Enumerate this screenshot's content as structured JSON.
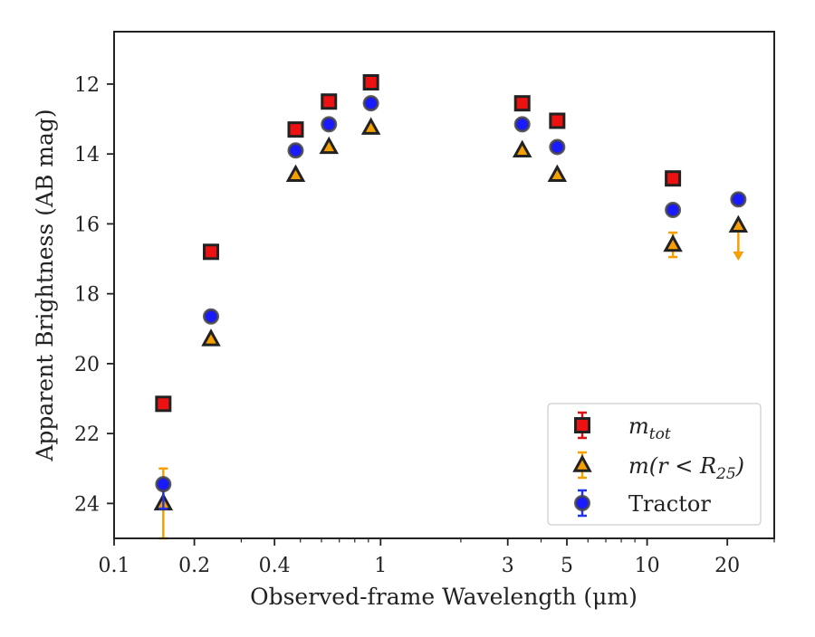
{
  "chart_data": {
    "type": "scatter",
    "xlabel": "Observed-frame Wavelength (μm)",
    "ylabel": "Apparent Brightness (AB mag)",
    "xscale": "log",
    "xlim": [
      0.1,
      30
    ],
    "ylim": [
      25,
      10.5
    ],
    "y_inverted": true,
    "x_ticks": [
      {
        "value": 0.1,
        "label": "0.1"
      },
      {
        "value": 0.2,
        "label": "0.2"
      },
      {
        "value": 0.4,
        "label": "0.4"
      },
      {
        "value": 1,
        "label": "1"
      },
      {
        "value": 3,
        "label": "3"
      },
      {
        "value": 5,
        "label": "5"
      },
      {
        "value": 10,
        "label": "10"
      },
      {
        "value": 20,
        "label": "20"
      }
    ],
    "y_ticks": [
      {
        "value": 12,
        "label": "12"
      },
      {
        "value": 14,
        "label": "14"
      },
      {
        "value": 16,
        "label": "16"
      },
      {
        "value": 18,
        "label": "18"
      },
      {
        "value": 20,
        "label": "20"
      },
      {
        "value": 22,
        "label": "22"
      },
      {
        "value": 24,
        "label": "24"
      }
    ],
    "grid": false,
    "legend_position": "lower-right",
    "series": [
      {
        "name": "m_tot",
        "legend_main": "m",
        "legend_sub": "tot",
        "marker": "square",
        "color": "#ee1111",
        "edgecolor": "#222222",
        "errcolor": "#dd1111",
        "points": [
          {
            "x": 0.153,
            "y": 21.15,
            "err": 0.1
          },
          {
            "x": 0.231,
            "y": 16.8,
            "err": 0.05
          },
          {
            "x": 0.48,
            "y": 13.3,
            "err": 0.03
          },
          {
            "x": 0.64,
            "y": 12.5,
            "err": 0.03
          },
          {
            "x": 0.92,
            "y": 11.95,
            "err": 0.03
          },
          {
            "x": 3.4,
            "y": 12.55,
            "err": 0.03
          },
          {
            "x": 4.6,
            "y": 13.05,
            "err": 0.03
          },
          {
            "x": 12.5,
            "y": 14.7,
            "err": 0.05
          },
          {
            "x": 22.0,
            "y": null
          }
        ]
      },
      {
        "name": "m(r < R25)",
        "legend_main": "m(r < R",
        "legend_sub": "25",
        "legend_tail": ")",
        "marker": "triangle",
        "color": "#f5a000",
        "edgecolor": "#222222",
        "errcolor": "#f5a000",
        "points": [
          {
            "x": 0.153,
            "y": 24.0,
            "err_low": 1.5,
            "err_high": 1.0
          },
          {
            "x": 0.231,
            "y": 19.3,
            "err": 0.05
          },
          {
            "x": 0.48,
            "y": 14.6,
            "err": 0.03
          },
          {
            "x": 0.64,
            "y": 13.8,
            "err": 0.03
          },
          {
            "x": 0.92,
            "y": 13.25,
            "err": 0.03
          },
          {
            "x": 3.4,
            "y": 13.9,
            "err": 0.03
          },
          {
            "x": 4.6,
            "y": 14.6,
            "err": 0.03
          },
          {
            "x": 12.5,
            "y": 16.6,
            "err": 0.35
          },
          {
            "x": 22.0,
            "y": 16.05,
            "upper_limit": true,
            "arrow_to": 17.0
          }
        ]
      },
      {
        "name": "Tractor",
        "legend_main": "Tractor",
        "marker": "circle",
        "color": "#1a1aff",
        "edgecolor": "#444444",
        "errcolor": "#2233ee",
        "points": [
          {
            "x": 0.153,
            "y": 23.45,
            "err_low": 0.7,
            "err_high": 0.1
          },
          {
            "x": 0.231,
            "y": 18.65,
            "err": 0.05
          },
          {
            "x": 0.48,
            "y": 13.9,
            "err": 0.03
          },
          {
            "x": 0.64,
            "y": 13.15,
            "err": 0.03
          },
          {
            "x": 0.92,
            "y": 12.55,
            "err": 0.03
          },
          {
            "x": 3.4,
            "y": 13.15,
            "err": 0.03
          },
          {
            "x": 4.6,
            "y": 13.8,
            "err": 0.03
          },
          {
            "x": 12.5,
            "y": 15.6,
            "err": 0.05
          },
          {
            "x": 22.0,
            "y": 15.3,
            "err": 0.05
          }
        ]
      }
    ]
  }
}
